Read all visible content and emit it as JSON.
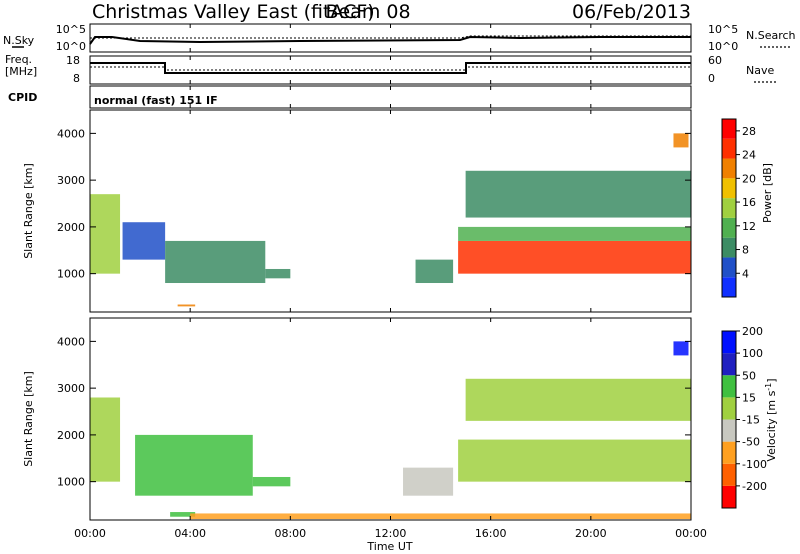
{
  "header": {
    "station": "Christmas Valley East (fitACF)",
    "beam": "Beam 08",
    "date": "06/Feb/2013"
  },
  "strip_panels": {
    "noise": {
      "left_label": "N.Sky",
      "right_label": "N.Search",
      "left_ticks": [
        "10^5",
        "10^0"
      ],
      "right_ticks": [
        "10^5",
        "10^0"
      ]
    },
    "frequency": {
      "left_label_line1": "Freq.",
      "left_label_line2": "[MHz]",
      "right_label": "Nave",
      "left_ticks": [
        "18",
        "8"
      ],
      "right_ticks": [
        "60",
        "0"
      ]
    },
    "cpid": {
      "label": "CPID",
      "text": "normal (fast) 151 IF"
    }
  },
  "time_axis": {
    "label": "Time UT",
    "ticks": [
      "00:00",
      "04:00",
      "08:00",
      "12:00",
      "16:00",
      "20:00",
      "00:00"
    ]
  },
  "colors": {
    "power_scale": [
      "#1030ff",
      "#2050c8",
      "#3c8c64",
      "#50b050",
      "#a0d040",
      "#f0c000",
      "#f08000",
      "#ff3000",
      "#ff0000"
    ],
    "velocity_scale": [
      "#ff0000",
      "#ff6000",
      "#ffa020",
      "#c8c8c0",
      "#a0d040",
      "#40c040",
      "#2020c0",
      "#0010ff"
    ]
  },
  "chart_data": [
    {
      "type": "heatmap",
      "title": "",
      "xlabel": "Time UT",
      "ylabel": "Slant Range [km]",
      "xlim": [
        "00:00",
        "24:00"
      ],
      "ylim": [
        180,
        4500
      ],
      "y_ticks": [
        "1000",
        "2000",
        "3000",
        "4000"
      ],
      "colorbar": {
        "label": "Power [dB]",
        "ticks": [
          "4",
          "8",
          "12",
          "16",
          "20",
          "24",
          "28"
        ],
        "range": [
          0,
          30
        ]
      },
      "regions": [
        {
          "t0": 0.0,
          "t1": 1.2,
          "r0": 1000,
          "r1": 2700,
          "level": 16
        },
        {
          "t0": 1.3,
          "t1": 3.0,
          "r0": 1300,
          "r1": 2100,
          "level": 6
        },
        {
          "t0": 3.0,
          "t1": 7.0,
          "r0": 800,
          "r1": 1700,
          "level": 8
        },
        {
          "t0": 7.0,
          "t1": 8.0,
          "r0": 900,
          "r1": 1100,
          "level": 8
        },
        {
          "t0": 3.5,
          "t1": 4.2,
          "r0": 300,
          "r1": 340,
          "level": 20
        },
        {
          "t0": 13.0,
          "t1": 14.5,
          "r0": 800,
          "r1": 1300,
          "level": 8
        },
        {
          "t0": 14.7,
          "t1": 24.0,
          "r0": 1000,
          "r1": 1700,
          "level": 26
        },
        {
          "t0": 14.7,
          "t1": 24.0,
          "r0": 1700,
          "r1": 2000,
          "level": 12
        },
        {
          "t0": 15.0,
          "t1": 24.0,
          "r0": 2200,
          "r1": 3200,
          "level": 8
        },
        {
          "t0": 23.3,
          "t1": 23.9,
          "r0": 3700,
          "r1": 4000,
          "level": 20
        }
      ]
    },
    {
      "type": "heatmap",
      "title": "",
      "xlabel": "Time UT",
      "ylabel": "Slant Range [km]",
      "xlim": [
        "00:00",
        "24:00"
      ],
      "ylim": [
        180,
        4500
      ],
      "y_ticks": [
        "1000",
        "2000",
        "3000",
        "4000"
      ],
      "colorbar": {
        "label": "Velocity [m s-1]",
        "ticks": [
          "-200",
          "-100",
          "-50",
          "-15",
          "15",
          "50",
          "100",
          "200"
        ],
        "range": [
          -250,
          250
        ]
      },
      "regions": [
        {
          "t0": 0.0,
          "t1": 1.2,
          "r0": 1000,
          "r1": 2800,
          "level": 0
        },
        {
          "t0": 1.8,
          "t1": 6.5,
          "r0": 700,
          "r1": 2000,
          "level": 40
        },
        {
          "t0": 6.5,
          "t1": 8.0,
          "r0": 900,
          "r1": 1100,
          "level": 40
        },
        {
          "t0": 3.2,
          "t1": 4.2,
          "r0": 250,
          "r1": 350,
          "level": 40
        },
        {
          "t0": 4.0,
          "t1": 24.0,
          "r0": 200,
          "r1": 320,
          "level": -60
        },
        {
          "t0": 12.5,
          "t1": 14.5,
          "r0": 700,
          "r1": 1300,
          "level": -20
        },
        {
          "t0": 14.7,
          "t1": 24.0,
          "r0": 1000,
          "r1": 1900,
          "level": 0
        },
        {
          "t0": 15.0,
          "t1": 24.0,
          "r0": 2300,
          "r1": 3200,
          "level": 0
        },
        {
          "t0": 23.3,
          "t1": 23.9,
          "r0": 3700,
          "r1": 4000,
          "level": 220
        }
      ]
    }
  ]
}
